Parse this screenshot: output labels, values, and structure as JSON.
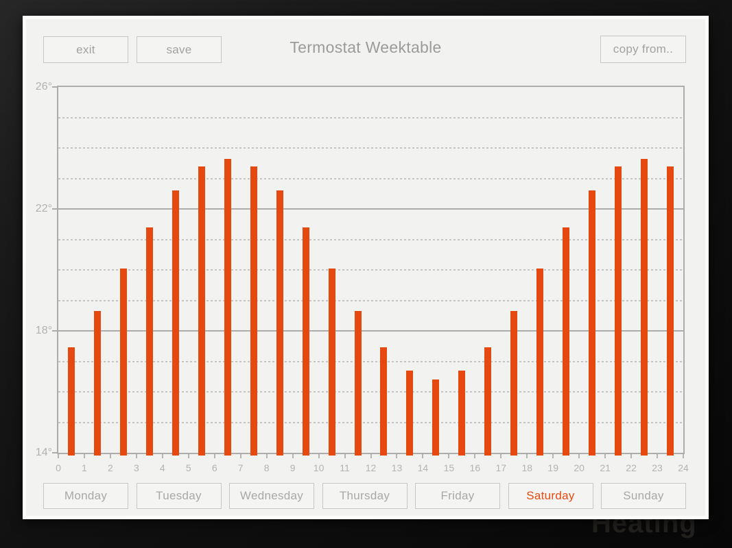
{
  "background": {
    "text": "Heating"
  },
  "toolbar": {
    "exit_label": "exit",
    "save_label": "save",
    "title": "Termostat Weektable",
    "copy_from_label": "copy from.."
  },
  "chart_data": {
    "type": "bar",
    "title": "Termostat Weektable",
    "unit": "degrees",
    "x_hours": [
      0,
      1,
      2,
      3,
      4,
      5,
      6,
      7,
      8,
      9,
      10,
      11,
      12,
      13,
      14,
      15,
      16,
      17,
      18,
      19,
      20,
      21,
      22,
      23
    ],
    "values": [
      17.45,
      18.65,
      20.05,
      21.4,
      22.6,
      23.4,
      23.65,
      23.4,
      22.6,
      21.4,
      20.05,
      18.65,
      17.45,
      16.7,
      16.4,
      16.7,
      17.45,
      18.65,
      20.05,
      21.4,
      22.6,
      23.4,
      23.65,
      23.4
    ],
    "xlim": [
      0,
      24
    ],
    "ylim": [
      14,
      26
    ],
    "x_tick_labels": [
      "0",
      "1",
      "2",
      "3",
      "4",
      "5",
      "6",
      "7",
      "8",
      "9",
      "10",
      "11",
      "12",
      "13",
      "14",
      "15",
      "16",
      "17",
      "18",
      "19",
      "20",
      "21",
      "22",
      "23",
      "24"
    ],
    "y_tick_labels": [
      "26°",
      "22°",
      "18°",
      "14°"
    ],
    "y_major_ticks": [
      26,
      22,
      18,
      14
    ],
    "y_minor_ticks": [
      25,
      24,
      23,
      21,
      20,
      19,
      17,
      16,
      15
    ],
    "grid": "major solid, minor dashed horizontal",
    "legend": null,
    "bar_color": "#e5490f"
  },
  "days": {
    "selected": "Saturday",
    "items": [
      {
        "label": "Monday",
        "selected": false
      },
      {
        "label": "Tuesday",
        "selected": false
      },
      {
        "label": "Wednesday",
        "selected": false
      },
      {
        "label": "Thursday",
        "selected": false
      },
      {
        "label": "Friday",
        "selected": false
      },
      {
        "label": "Saturday",
        "selected": true
      },
      {
        "label": "Sunday",
        "selected": false
      }
    ]
  },
  "colors": {
    "accent": "#e5490f",
    "selected_day_text": "#e8490f",
    "panel_bg": "#f2f2f0",
    "panel_frame": "#fbfbfa",
    "button_border": "#c6c6c6",
    "button_text": "#a2a2a2",
    "title_text": "#9b9b9b",
    "axis_text": "#b2b2b2",
    "grid_major": "#acacac",
    "grid_minor": "#c4c4c4",
    "desktop_bg": "#111111"
  }
}
